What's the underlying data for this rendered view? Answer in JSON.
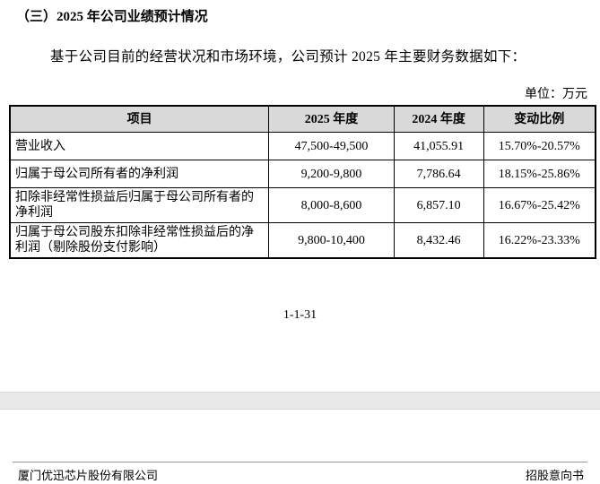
{
  "heading": "（三）2025 年公司业绩预计情况",
  "paragraph": "基于公司目前的经营状况和市场环境，公司预计 2025 年主要财务数据如下：",
  "unit": "单位：万元",
  "table": {
    "header": [
      "项目",
      "2025 年度",
      "2024 年度",
      "变动比例"
    ],
    "rows": [
      [
        "营业收入",
        "47,500-49,500",
        "41,055.91",
        "15.70%-20.57%"
      ],
      [
        "归属于母公司所有者的净利润",
        "9,200-9,800",
        "7,786.64",
        "18.15%-25.86%"
      ],
      [
        "扣除非经常性损益后归属于母公司所有者的净利润",
        "8,000-8,600",
        "6,857.10",
        "16.67%-25.42%"
      ],
      [
        "归属于母公司股东扣除非经常性损益后的净利润（剔除股份支付影响）",
        "9,800-10,400",
        "8,432.46",
        "16.22%-23.33%"
      ]
    ]
  },
  "page_number": "1-1-31",
  "footer": {
    "left": "厦门优迅芯片股份有限公司",
    "right": "招股意向书"
  }
}
